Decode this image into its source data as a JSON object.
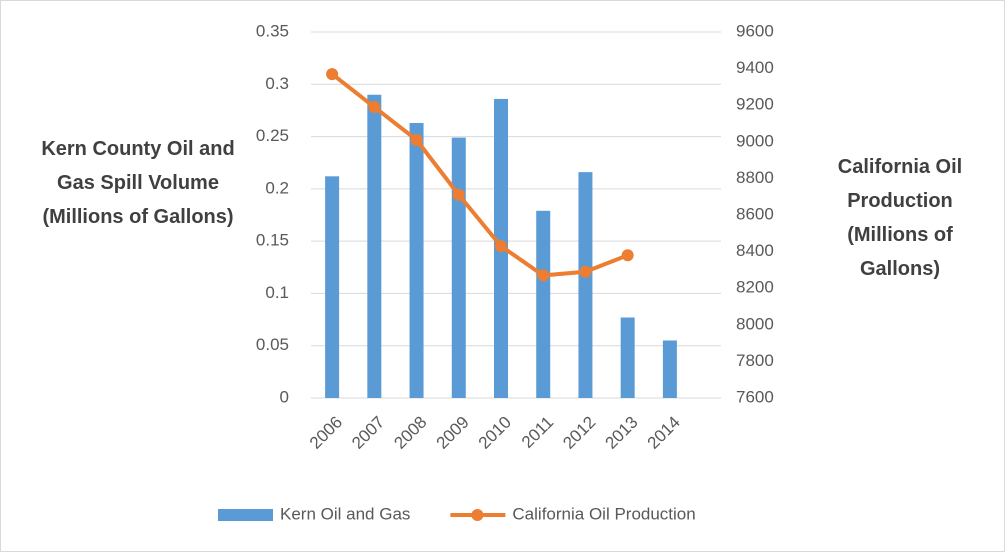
{
  "chart_data": {
    "type": "bar",
    "y_label": "Kern County Oil and Gas Spill Volume (Millions of Gallons)",
    "y2_label": "California Oil Production (Millions of Gallons)",
    "categories": [
      "2006",
      "2007",
      "2008",
      "2009",
      "2010",
      "2011",
      "2012",
      "2013",
      "2014"
    ],
    "series": [
      {
        "name": "Kern Oil and Gas",
        "type": "bar",
        "color": "#5b9bd5",
        "axis": "y",
        "values": [
          0.212,
          0.29,
          0.263,
          0.249,
          0.286,
          0.179,
          0.216,
          0.077,
          0.055
        ]
      },
      {
        "name": "California Oil Production",
        "type": "line",
        "color": "#ed7d31",
        "axis": "y2",
        "values": [
          9370,
          9190,
          9010,
          8710,
          8430,
          8270,
          8290,
          8380,
          null
        ]
      }
    ],
    "ylim": [
      0,
      0.35
    ],
    "yticks": [
      0,
      0.05,
      0.1,
      0.15,
      0.2,
      0.25,
      0.3,
      0.35
    ],
    "y2lim": [
      7600,
      9600
    ],
    "y2ticks": [
      7600,
      7800,
      8000,
      8200,
      8400,
      8600,
      8800,
      9000,
      9200,
      9400,
      9600
    ],
    "grid": true,
    "legend": "bottom"
  }
}
